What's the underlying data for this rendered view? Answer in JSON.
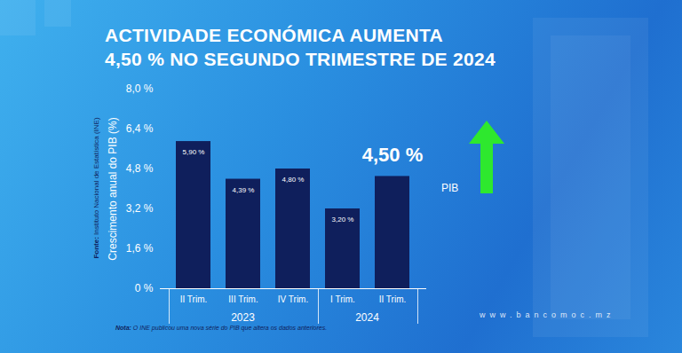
{
  "chart_data": {
    "type": "bar",
    "title": "ACTIVIDADE ECONÓMICA AUMENTA\n4,50 % NO SEGUNDO TRIMESTRE DE 2024",
    "y_label": "Crescimento anual do PIB (%)",
    "categories": [
      "II Trim.",
      "III Trim.",
      "IV Trim.",
      "I Trim.",
      "II Trim."
    ],
    "category_groups": [
      {
        "label": "2023",
        "count": 3
      },
      {
        "label": "2024",
        "count": 2
      }
    ],
    "values": [
      5.9,
      4.39,
      4.8,
      3.2,
      4.5
    ],
    "value_labels": [
      "5,90 %",
      "4,39 %",
      "4,80 %",
      "3,20 %",
      "4,50 %"
    ],
    "data_labels": true,
    "color": "#0f1f5c",
    "ylim": [
      0,
      8
    ],
    "yticks": [
      {
        "value": 0,
        "label": "0 %"
      },
      {
        "value": 1.6,
        "label": "1,6 %"
      },
      {
        "value": 3.2,
        "label": "3,2 %"
      },
      {
        "value": 4.8,
        "label": "4,8 %"
      },
      {
        "value": 6.4,
        "label": "6,4 %"
      },
      {
        "value": 8,
        "label": "8,0 %"
      }
    ],
    "grid": false,
    "arrow_label": "PIB",
    "source": "Fonte: Instituto Nacional de Estatística (INE)",
    "note": "Nota: O INE publicou uma nova série do PIB que altera os dados anteriores.",
    "website": "www.bancomoc.mz"
  }
}
